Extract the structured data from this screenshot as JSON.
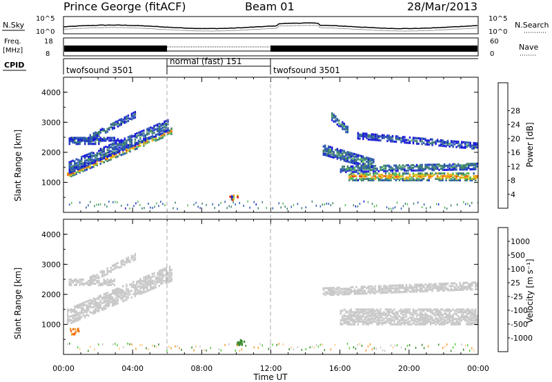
{
  "header": {
    "station": "Prince George (fitACF)",
    "beam": "Beam 01",
    "date": "28/Mar/2013"
  },
  "top_strip": {
    "nsky_label": "N.Sky",
    "nsky_ticks": [
      "10^5",
      "10^0"
    ],
    "nsearch_label": "N.Search",
    "nsearch_ticks": [
      "10^5",
      "10^0"
    ],
    "freq_label_1": "Freq.",
    "freq_label_2": "[MHz]",
    "freq_ticks": [
      "18",
      "8"
    ],
    "nave_label": "Nave",
    "nave_ticks": [
      "60",
      "0"
    ],
    "cpid_label": "CPID",
    "cpid_segments": [
      {
        "label": "twofsound 3501",
        "start_h": 0,
        "end_h": 6
      },
      {
        "label": "normal (fast) 151",
        "start_h": 6,
        "end_h": 12
      },
      {
        "label": "twofsound 3501",
        "start_h": 12,
        "end_h": 24
      }
    ]
  },
  "x_axis": {
    "title": "Time UT",
    "ticks": [
      "00:00",
      "04:00",
      "08:00",
      "12:00",
      "16:00",
      "20:00",
      "00:00"
    ]
  },
  "colors": {
    "power": [
      "#1a1ad6",
      "#2c58b0",
      "#3d7e6e",
      "#55b858",
      "#d6c31c",
      "#f2a014",
      "#f06a10",
      "#e63618",
      "#d80e0e"
    ],
    "velocity": [
      "#d80e0e",
      "#f06a10",
      "#f29a2a",
      "#ffc880",
      "#c8c8c8",
      "#52c83a",
      "#3a8a2c",
      "#1f4fb8",
      "#182c9c"
    ]
  },
  "chart_data": [
    {
      "type": "heatmap",
      "panel": "power",
      "ylabel": "Slant Range [km]",
      "ylim": [
        0,
        4500
      ],
      "yticks": [
        "1000",
        "2000",
        "3000",
        "4000"
      ],
      "xlim_hours": [
        0,
        24
      ],
      "colorbar": {
        "label": "Power [dB]",
        "ticks": [
          "4",
          "8",
          "12",
          "16",
          "20",
          "24",
          "28"
        ],
        "range": [
          0,
          32
        ]
      },
      "bands": [
        {
          "t_start": 0.2,
          "t_end": 6.2,
          "range_start": 1250,
          "range_end": 2700,
          "width_km": 180,
          "value": 22
        },
        {
          "t_start": 0.3,
          "t_end": 6.0,
          "range_start": 1500,
          "range_end": 2900,
          "width_km": 380,
          "value": 8
        },
        {
          "t_start": 0.3,
          "t_end": 2.2,
          "range_start": 2380,
          "range_end": 2380,
          "width_km": 200,
          "value": 9
        },
        {
          "t_start": 0.3,
          "t_end": 3.2,
          "range_start": 2450,
          "range_end": 2450,
          "width_km": 120,
          "value": 6
        },
        {
          "t_start": 1.5,
          "t_end": 4.2,
          "range_start": 2500,
          "range_end": 3300,
          "width_km": 220,
          "value": 8
        },
        {
          "t_start": 15.5,
          "t_end": 16.5,
          "range_start": 3200,
          "range_end": 2700,
          "width_km": 250,
          "value": 10
        },
        {
          "t_start": 15.0,
          "t_end": 18.0,
          "range_start": 2100,
          "range_end": 1600,
          "width_km": 350,
          "value": 9
        },
        {
          "t_start": 17.0,
          "t_end": 24.0,
          "range_start": 2550,
          "range_end": 2200,
          "width_km": 180,
          "value": 7
        },
        {
          "t_start": 16.5,
          "t_end": 24.0,
          "range_start": 1200,
          "range_end": 1200,
          "width_km": 260,
          "value": 22
        },
        {
          "t_start": 16.0,
          "t_end": 24.0,
          "range_start": 1450,
          "range_end": 1550,
          "width_km": 220,
          "value": 10
        }
      ],
      "patches": [
        {
          "t": 9.8,
          "range": 550,
          "value": 22
        }
      ]
    },
    {
      "type": "heatmap",
      "panel": "velocity",
      "ylabel": "Slant Range [km]",
      "ylim": [
        0,
        4500
      ],
      "yticks": [
        "1000",
        "2000",
        "3000",
        "4000"
      ],
      "xlim_hours": [
        0,
        24
      ],
      "colorbar": {
        "label": "Velocity [m s⁻¹]",
        "ticks": [
          "1000",
          "500",
          "100",
          "25",
          "-25",
          "-100",
          "-500",
          "-1000"
        ],
        "range": [
          -1000,
          1000
        ]
      },
      "bands": [
        {
          "t_start": 0.2,
          "t_end": 6.2,
          "range_start": 1250,
          "range_end": 2700,
          "width_km": 500,
          "value": 0
        },
        {
          "t_start": 1.5,
          "t_end": 4.2,
          "range_start": 2500,
          "range_end": 3300,
          "width_km": 220,
          "value": 0
        },
        {
          "t_start": 0.3,
          "t_end": 3.0,
          "range_start": 2400,
          "range_end": 2400,
          "width_km": 180,
          "value": 0
        },
        {
          "t_start": 15.0,
          "t_end": 24.0,
          "range_start": 2100,
          "range_end": 2300,
          "width_km": 250,
          "value": 0
        },
        {
          "t_start": 16.0,
          "t_end": 24.0,
          "range_start": 1250,
          "range_end": 1250,
          "width_km": 500,
          "value": 0
        }
      ],
      "patches": [
        {
          "t": 0.6,
          "range": 800,
          "value": -500
        },
        {
          "t": 10.2,
          "range": 450,
          "value": 150
        }
      ]
    }
  ]
}
